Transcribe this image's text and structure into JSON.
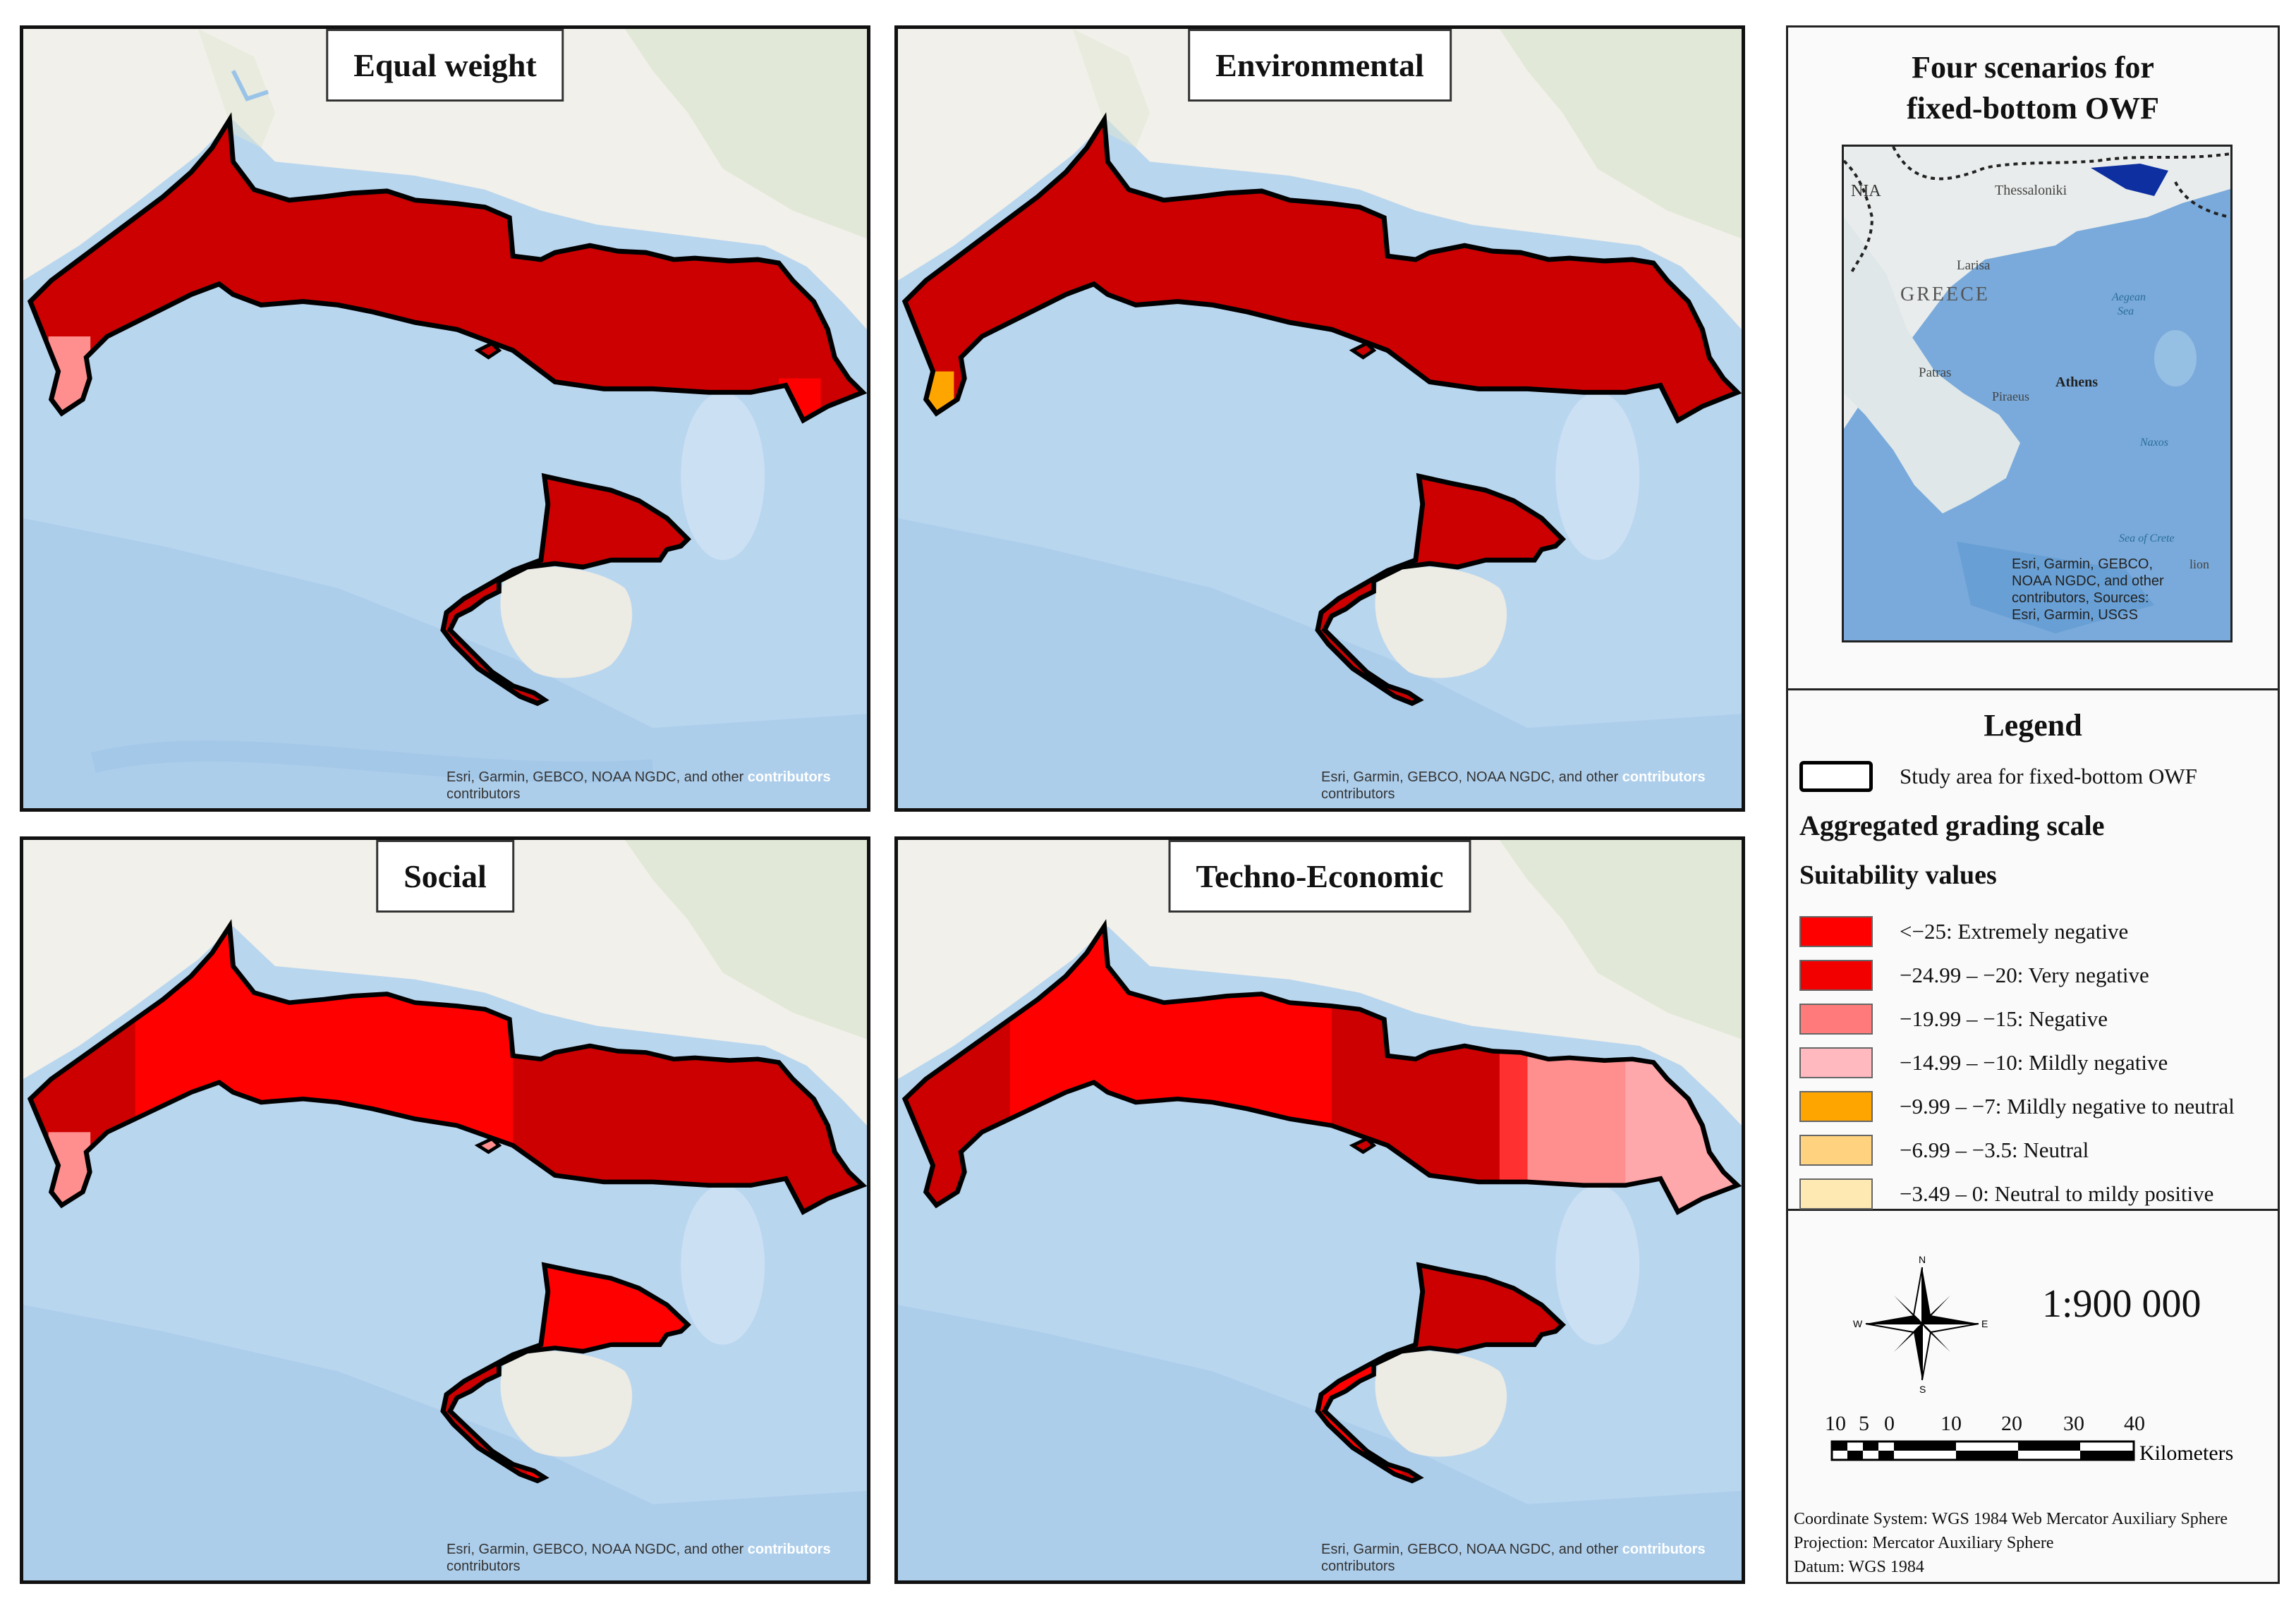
{
  "panels": [
    {
      "title": "Equal weight",
      "attribution_a": "Esri, Garmin, GEBCO, NOAA NGDC, and other ",
      "attribution_b": "contributors",
      "attribution_c": "contributors"
    },
    {
      "title": "Environmental",
      "attribution_a": "Esri, Garmin, GEBCO, NOAA NGDC, and other ",
      "attribution_b": "contributors",
      "attribution_c": "contributors"
    },
    {
      "title": "Social",
      "attribution_a": "Esri, Garmin, GEBCO, NOAA NGDC, and other ",
      "attribution_b": "contributors",
      "attribution_c": "contributors"
    },
    {
      "title": "Techno-Economic",
      "attribution_a": "Esri, Garmin, GEBCO, NOAA NGDC, and other ",
      "attribution_b": "contributors",
      "attribution_c": "contributors"
    }
  ],
  "overview": {
    "title_line1": "Four scenarios for",
    "title_line2": "fixed-bottom OWF",
    "labels": {
      "nia": "NIA",
      "thessaloniki": "Thessaloniki",
      "larisa": "Larisa",
      "greece": "GREECE",
      "aegean1": "Aegean",
      "aegean2": "Sea",
      "patras": "Patras",
      "athens": "Athens",
      "piraeus": "Piraeus",
      "naxos": "Naxos",
      "crete_sea": "Sea of Crete",
      "lion": "lion"
    },
    "attribution": [
      "Esri, Garmin, GEBCO,",
      "NOAA NGDC, and other",
      "contributors, Sources:",
      "Esri, Garmin, USGS"
    ]
  },
  "legend": {
    "title": "Legend",
    "study_area": "Study area for fixed-bottom OWF",
    "scale_heading": "Aggregated grading scale",
    "values_heading": "Suitability values",
    "classes": [
      {
        "label": "<−25: Extremely negative",
        "color": "#ff0000"
      },
      {
        "label": "−24.99 – −20: Very negative",
        "color": "#f20000"
      },
      {
        "label": "−19.99 – −15: Negative",
        "color": "#ff7b7b"
      },
      {
        "label": "−14.99 – −10: Mildly negative",
        "color": "#ffb9bf"
      },
      {
        "label": "−9.99 – −7: Mildly negative to neutral",
        "color": "#ffa500"
      },
      {
        "label": "−6.99 – −3.5: Neutral",
        "color": "#ffd27f"
      },
      {
        "label": "−3.49 – 0: Neutral to mildy positive",
        "color": "#ffe9b3"
      }
    ]
  },
  "scale": {
    "ratio": "1:900 000",
    "ticks": [
      "10",
      "5",
      "0",
      "10",
      "20",
      "30",
      "40"
    ],
    "unit": "Kilometers",
    "compass": {
      "n": "N",
      "s": "S",
      "e": "E",
      "w": "W"
    }
  },
  "coordinate_info": [
    "Coordinate System: WGS 1984 Web Mercator Auxiliary Sphere",
    "Projection: Mercator Auxiliary Sphere",
    "Datum: WGS 1984"
  ],
  "colors": {
    "sea": "#b9d6ef",
    "land": "#f1f0ea",
    "dark_red": "#cc0000",
    "red": "#ff0000",
    "pink": "#ff8f8f",
    "light_pink": "#ffb9bf",
    "orange": "#ffa500"
  }
}
